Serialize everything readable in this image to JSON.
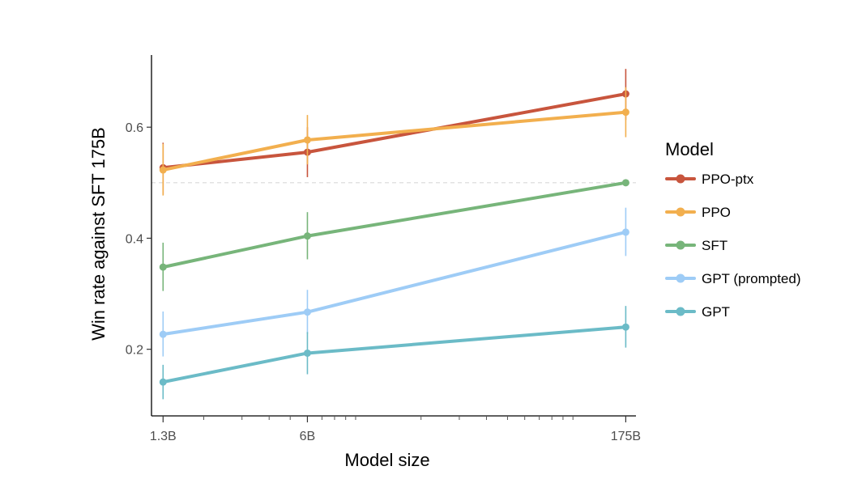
{
  "chart_data": {
    "type": "line",
    "xlabel": "Model size",
    "ylabel": "Win rate against SFT 175B",
    "x_scale": "log",
    "x_ticks": [
      {
        "value": 1.3,
        "label": "1.3B"
      },
      {
        "value": 6,
        "label": "6B"
      },
      {
        "value": 175,
        "label": "175B"
      }
    ],
    "x": [
      1.3,
      6,
      175
    ],
    "xlim": [
      1.15,
      195
    ],
    "y_ticks": [
      {
        "value": 0.2,
        "label": "0.2"
      },
      {
        "value": 0.4,
        "label": "0.4"
      },
      {
        "value": 0.6,
        "label": "0.6"
      }
    ],
    "ylim": [
      0.08,
      0.73
    ],
    "reference_line": 0.5,
    "legend": {
      "title": "Model",
      "position": "right"
    },
    "grid": false,
    "series": [
      {
        "name": "PPO-ptx",
        "color": "#C8553D",
        "values": [
          0.527,
          0.555,
          0.66
        ],
        "err_low": [
          0.478,
          0.51,
          0.613
        ],
        "err_high": [
          0.572,
          0.6,
          0.705
        ]
      },
      {
        "name": "PPO",
        "color": "#F2AF4E",
        "values": [
          0.523,
          0.577,
          0.627
        ],
        "err_low": [
          0.477,
          0.533,
          0.582
        ],
        "err_high": [
          0.57,
          0.622,
          0.672
        ]
      },
      {
        "name": "SFT",
        "color": "#77B57A",
        "values": [
          0.348,
          0.404,
          0.5
        ],
        "err_low": [
          0.305,
          0.362,
          0.5
        ],
        "err_high": [
          0.392,
          0.447,
          0.5
        ]
      },
      {
        "name": "GPT (prompted)",
        "color": "#9ECCF6",
        "values": [
          0.227,
          0.267,
          0.411
        ],
        "err_low": [
          0.187,
          0.228,
          0.368
        ],
        "err_high": [
          0.268,
          0.307,
          0.455
        ]
      },
      {
        "name": "GPT",
        "color": "#6BBBC7",
        "values": [
          0.141,
          0.193,
          0.24
        ],
        "err_low": [
          0.11,
          0.155,
          0.203
        ],
        "err_high": [
          0.172,
          0.231,
          0.278
        ]
      }
    ]
  }
}
